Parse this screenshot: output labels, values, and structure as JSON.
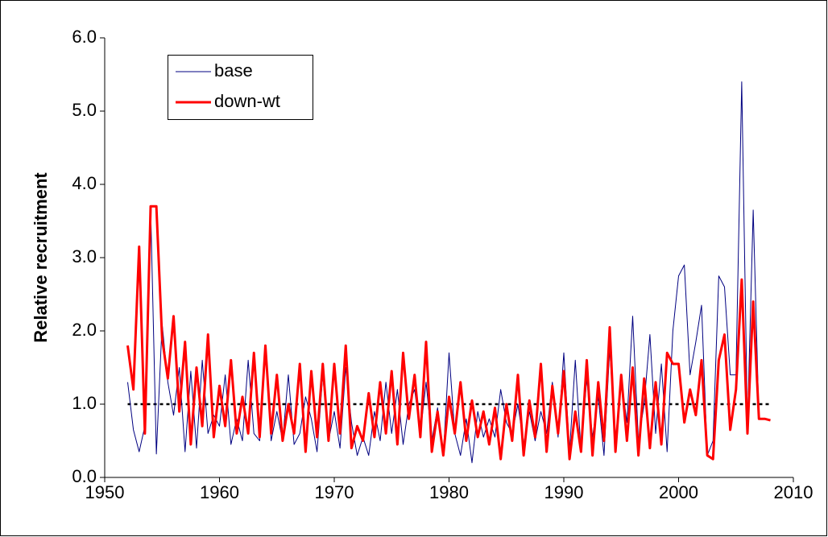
{
  "chart_data": {
    "type": "line",
    "y_label": "Relative recruitment",
    "x": [
      1952,
      1952.5,
      1953,
      1953.5,
      1954,
      1954.5,
      1955,
      1955.5,
      1956,
      1956.5,
      1957,
      1957.5,
      1958,
      1958.5,
      1959,
      1959.5,
      1960,
      1960.5,
      1961,
      1961.5,
      1962,
      1962.5,
      1963,
      1963.5,
      1964,
      1964.5,
      1965,
      1965.5,
      1966,
      1966.5,
      1967,
      1967.5,
      1968,
      1968.5,
      1969,
      1969.5,
      1970,
      1970.5,
      1971,
      1971.5,
      1972,
      1972.5,
      1973,
      1973.5,
      1974,
      1974.5,
      1975,
      1975.5,
      1976,
      1976.5,
      1977,
      1977.5,
      1978,
      1978.5,
      1979,
      1979.5,
      1980,
      1980.5,
      1981,
      1981.5,
      1982,
      1982.5,
      1983,
      1983.5,
      1984,
      1984.5,
      1985,
      1985.5,
      1986,
      1986.5,
      1987,
      1987.5,
      1988,
      1988.5,
      1989,
      1989.5,
      1990,
      1990.5,
      1991,
      1991.5,
      1992,
      1992.5,
      1993,
      1993.5,
      1994,
      1994.5,
      1995,
      1995.5,
      1996,
      1996.5,
      1997,
      1997.5,
      1998,
      1998.5,
      1999,
      1999.5,
      2000,
      2000.5,
      2001,
      2001.5,
      2002,
      2002.5,
      2003,
      2003.5,
      2004,
      2004.5,
      2005,
      2005.5,
      2006,
      2006.5,
      2007,
      2007.5,
      2008
    ],
    "series": [
      {
        "name": "base",
        "color": "#000080",
        "width": 1,
        "values": [
          1.3,
          0.65,
          0.35,
          0.7,
          3.7,
          0.32,
          2.1,
          1.3,
          0.85,
          1.5,
          0.35,
          1.45,
          0.4,
          1.6,
          0.6,
          0.85,
          0.7,
          1.4,
          0.45,
          0.8,
          0.5,
          1.6,
          0.6,
          0.5,
          1.8,
          0.5,
          0.9,
          0.5,
          1.4,
          0.45,
          0.6,
          1.1,
          0.8,
          0.35,
          1.4,
          0.5,
          0.9,
          0.4,
          1.5,
          0.75,
          0.3,
          0.55,
          0.3,
          0.9,
          0.5,
          1.3,
          0.6,
          1.2,
          0.45,
          1.0,
          1.2,
          0.6,
          1.3,
          0.5,
          0.95,
          0.3,
          1.7,
          0.6,
          0.3,
          0.8,
          0.2,
          0.9,
          0.55,
          0.8,
          0.55,
          1.2,
          0.75,
          0.6,
          1.0,
          0.45,
          0.9,
          0.5,
          0.9,
          0.6,
          1.3,
          0.55,
          1.7,
          0.35,
          1.6,
          0.35,
          1.35,
          0.55,
          1.1,
          0.3,
          1.75,
          0.5,
          1.35,
          0.75,
          2.2,
          0.5,
          1.0,
          1.95,
          0.6,
          1.55,
          0.35,
          2.0,
          2.75,
          2.9,
          1.4,
          1.85,
          2.35,
          0.3,
          0.5,
          2.75,
          2.6,
          1.4,
          1.4,
          5.4,
          0.7,
          3.65,
          0.8,
          0.8,
          0.78
        ]
      },
      {
        "name": "down-wt",
        "color": "#ff0000",
        "width": 3,
        "values": [
          1.8,
          1.2,
          3.15,
          0.6,
          3.7,
          3.7,
          1.9,
          1.35,
          2.2,
          0.9,
          1.85,
          0.45,
          1.5,
          0.7,
          1.95,
          0.55,
          1.25,
          0.7,
          1.6,
          0.6,
          1.1,
          0.6,
          1.7,
          0.55,
          1.8,
          0.6,
          1.4,
          0.5,
          1.0,
          0.6,
          1.55,
          0.35,
          1.45,
          0.55,
          1.55,
          0.5,
          1.55,
          0.6,
          1.8,
          0.4,
          0.7,
          0.5,
          1.15,
          0.55,
          1.3,
          0.6,
          1.45,
          0.45,
          1.7,
          0.8,
          1.4,
          0.55,
          1.85,
          0.35,
          0.9,
          0.3,
          1.1,
          0.6,
          1.3,
          0.5,
          1.05,
          0.55,
          0.9,
          0.45,
          0.95,
          0.25,
          1.0,
          0.5,
          1.4,
          0.3,
          1.05,
          0.55,
          1.55,
          0.35,
          1.25,
          0.6,
          1.45,
          0.25,
          0.9,
          0.35,
          1.6,
          0.3,
          1.3,
          0.5,
          2.05,
          0.35,
          1.4,
          0.5,
          1.5,
          0.3,
          1.35,
          0.4,
          1.3,
          0.45,
          1.7,
          1.55,
          1.55,
          0.75,
          1.2,
          0.85,
          1.6,
          0.3,
          0.25,
          1.6,
          1.95,
          0.65,
          1.2,
          2.7,
          0.6,
          2.4,
          0.8,
          0.8,
          0.78
        ]
      }
    ],
    "reference_line": {
      "y": 1,
      "x": [
        1952,
        2008
      ]
    },
    "xlim": [
      1950,
      2010
    ],
    "xticks": [
      1950,
      1960,
      1970,
      1980,
      1990,
      2000,
      2010
    ],
    "ylim": [
      0,
      6
    ],
    "yticks": [
      {
        "value": 0,
        "label": "0.0"
      },
      {
        "value": 1,
        "label": "1.0"
      },
      {
        "value": 2,
        "label": "2.0"
      },
      {
        "value": 3,
        "label": "3.0"
      },
      {
        "value": 4,
        "label": "4.0"
      },
      {
        "value": 5,
        "label": "5.0"
      },
      {
        "value": 6,
        "label": "6.0"
      }
    ]
  }
}
